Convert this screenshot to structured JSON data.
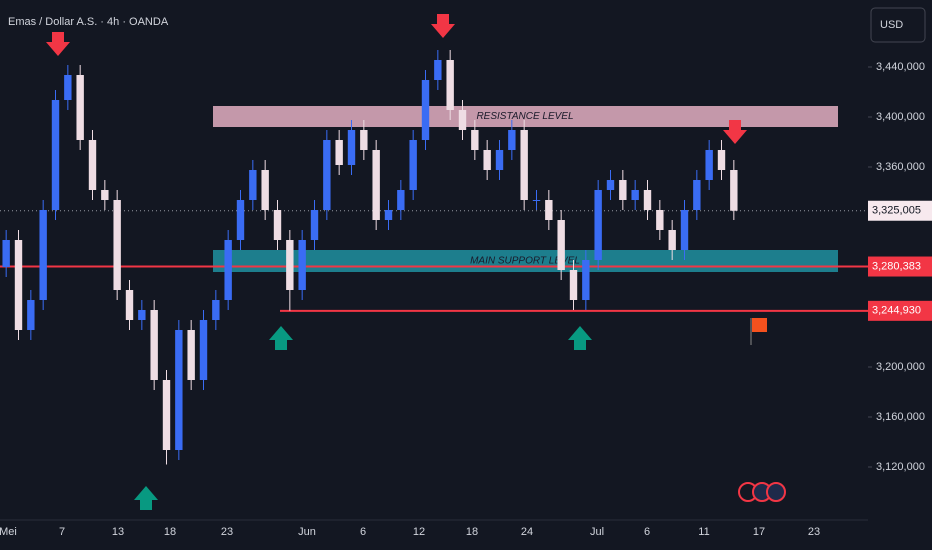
{
  "chart_data": {
    "type": "candlestick",
    "title": "Emas / Dollar A.S. · 4h · OANDA",
    "currency": "USD",
    "ylim": [
      3077600,
      3493600
    ],
    "yticks": [
      {
        "value": 3120000,
        "label": "3,120,000"
      },
      {
        "value": 3160000,
        "label": "3,160,000"
      },
      {
        "value": 3200000,
        "label": "3,200,000"
      },
      {
        "value": 3360000,
        "label": "3,360,000"
      },
      {
        "value": 3400000,
        "label": "3,400,000"
      },
      {
        "value": 3440000,
        "label": "3,440,000"
      }
    ],
    "x_axis_labels": [
      "Mei",
      "7",
      "13",
      "18",
      "23",
      "Jun",
      "6",
      "12",
      "18",
      "24",
      "Jul",
      "6",
      "11",
      "17",
      "23"
    ],
    "up_color": "#3a6cf4",
    "down_color": "#efdde4",
    "open": [
      3280000,
      3301600,
      3229600,
      3253600,
      3325600,
      3413600,
      3433600,
      3381600,
      3341600,
      3333600,
      3261600,
      3237600,
      3245600,
      3189600,
      3133600,
      3229600,
      3189600,
      3237600,
      3253600,
      3301600,
      3333600,
      3357600,
      3325600,
      3301600,
      3261600,
      3301600,
      3325600,
      3381600,
      3361600,
      3389600,
      3373600,
      3317600,
      3325600,
      3341600,
      3381600,
      3429600,
      3445600,
      3405600,
      3389600,
      3373600,
      3357600,
      3373600,
      3389600,
      3333600,
      3333600,
      3317600,
      3277600,
      3253600,
      3285600,
      3341600,
      3349600,
      3333600,
      3341600,
      3325600,
      3309600,
      3293600,
      3325600,
      3349600,
      3373600,
      3357600
    ],
    "high": [
      3309600,
      3309600,
      3261600,
      3333600,
      3421600,
      3441600,
      3441600,
      3389600,
      3349600,
      3341600,
      3269600,
      3253600,
      3253600,
      3197600,
      3237600,
      3237600,
      3245600,
      3261600,
      3309600,
      3341600,
      3365600,
      3365600,
      3333600,
      3309600,
      3309600,
      3333600,
      3389600,
      3389600,
      3397600,
      3397600,
      3381600,
      3333600,
      3349600,
      3389600,
      3437600,
      3453600,
      3453600,
      3413600,
      3397600,
      3381600,
      3381600,
      3397600,
      3397600,
      3341600,
      3341600,
      3325600,
      3285600,
      3293600,
      3349600,
      3357600,
      3357600,
      3349600,
      3349600,
      3333600,
      3317600,
      3333600,
      3357600,
      3381600,
      3381600,
      3365600
    ],
    "low": [
      3272000,
      3221600,
      3221600,
      3245600,
      3317600,
      3405600,
      3373600,
      3333600,
      3325600,
      3253600,
      3229600,
      3229600,
      3181600,
      3122000,
      3125600,
      3181600,
      3181600,
      3229600,
      3245600,
      3293600,
      3325600,
      3317600,
      3293600,
      3245000,
      3253600,
      3293600,
      3317600,
      3353600,
      3353600,
      3365600,
      3309600,
      3309600,
      3317600,
      3333600,
      3373600,
      3421600,
      3397600,
      3381600,
      3365600,
      3349600,
      3349600,
      3365600,
      3325600,
      3325600,
      3309600,
      3269600,
      3245600,
      3245600,
      3277600,
      3333600,
      3325600,
      3325600,
      3317600,
      3301600,
      3285600,
      3285600,
      3317600,
      3341600,
      3349600,
      3317600
    ],
    "close": [
      3301600,
      3229600,
      3253600,
      3325600,
      3413600,
      3433600,
      3381600,
      3341600,
      3333600,
      3261600,
      3237600,
      3245600,
      3189600,
      3133600,
      3229600,
      3189600,
      3237600,
      3253600,
      3301600,
      3333600,
      3357600,
      3325600,
      3301600,
      3261600,
      3301600,
      3325600,
      3381600,
      3361600,
      3389600,
      3373600,
      3317600,
      3325600,
      3341600,
      3381600,
      3429600,
      3445600,
      3405600,
      3389600,
      3373600,
      3357600,
      3373600,
      3389600,
      3333600,
      3333600,
      3317600,
      3277600,
      3253600,
      3285600,
      3341600,
      3349600,
      3333600,
      3341600,
      3325600,
      3309600,
      3293600,
      3325600,
      3349600,
      3373600,
      3357600,
      3325005
    ],
    "zones": [
      {
        "label": "RESISTANCE LEVEL",
        "range": [
          3392000,
          3408800
        ],
        "color": "#d8a6b9"
      },
      {
        "label": "MAIN SUPPORT LEVEL",
        "range": [
          3276000,
          3293600
        ],
        "color": "#1f8a99"
      }
    ],
    "price_lines": [
      {
        "value": 3280383,
        "label": "3,280,383",
        "color": "#f23645"
      },
      {
        "value": 3244930,
        "label": "3,244,930",
        "color": "#f23645"
      }
    ],
    "last_price": {
      "value": 3325005,
      "label": "3,325,005"
    }
  }
}
